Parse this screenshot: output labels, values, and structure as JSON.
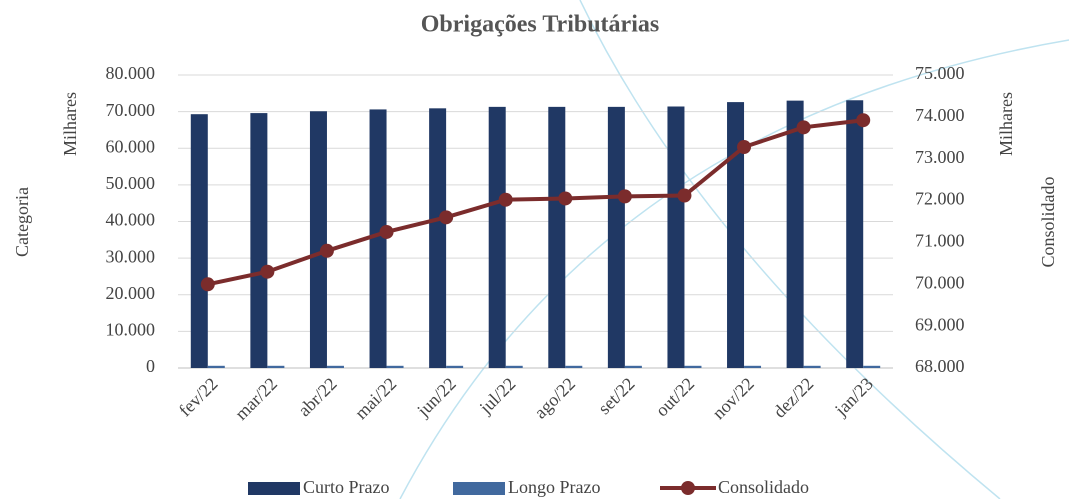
{
  "chart_data": {
    "type": "bar",
    "title": "Obrigações Tributárias",
    "x_label": "Categoria",
    "y_label": "Milhares",
    "y2_label": "Milhares",
    "y2_title": "Consolidado",
    "categories": [
      "fev/22",
      "mar/22",
      "abr/22",
      "mai/22",
      "jun/22",
      "jul/22",
      "ago/22",
      "set/22",
      "out/22",
      "nov/22",
      "dez/22",
      "jan/23"
    ],
    "series": [
      {
        "name": "Curto Prazo",
        "color": "#203864",
        "values": [
          69300,
          69600,
          70100,
          70600,
          70900,
          71300,
          71300,
          71300,
          71400,
          72600,
          73000,
          73100
        ]
      },
      {
        "name": "Longo Prazo",
        "color": "#41699e",
        "values": [
          600,
          600,
          600,
          600,
          600,
          600,
          600,
          600,
          600,
          600,
          600,
          600
        ]
      },
      {
        "name": "Consolidado",
        "color": "#7b2c2c",
        "type": "line",
        "axis": "y2",
        "values": [
          70000,
          70300,
          70800,
          71250,
          71600,
          72020,
          72050,
          72100,
          72120,
          73280,
          73750,
          73920
        ]
      }
    ],
    "ylim": [
      0,
      80000
    ],
    "yticks": [
      0,
      {
        "value": 10000,
        "label": "10.000"
      },
      {
        "value": 20000,
        "label": "20.000"
      },
      {
        "value": 30000,
        "label": "30.000"
      },
      {
        "value": 40000,
        "label": "40.000"
      },
      {
        "value": 50000,
        "label": "50.000"
      },
      {
        "value": 60000,
        "label": "60.000"
      },
      {
        "value": 70000,
        "label": "70.000"
      },
      {
        "value": 80000,
        "label": "80.000"
      }
    ],
    "y2lim": [
      68000,
      75000
    ],
    "y2ticks": [
      {
        "value": 68000,
        "label": "68.000"
      },
      {
        "value": 69000,
        "label": "69.000"
      },
      {
        "value": 70000,
        "label": "70.000"
      },
      {
        "value": 71000,
        "label": "71.000"
      },
      {
        "value": 72000,
        "label": "72.000"
      },
      {
        "value": 73000,
        "label": "73.000"
      },
      {
        "value": 74000,
        "label": "74.000"
      },
      {
        "value": 75000,
        "label": "75.000"
      }
    ],
    "grid": true
  }
}
